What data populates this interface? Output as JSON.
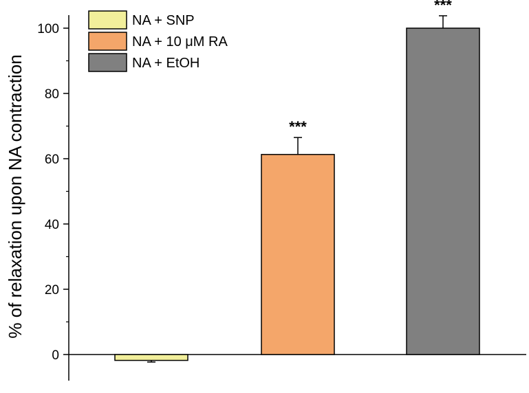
{
  "chart_data": {
    "type": "bar",
    "categories": [
      "NA + SNP",
      "NA + 10 μM RA",
      "NA + EtOH"
    ],
    "values": [
      -1.8,
      61.3,
      100.0
    ],
    "errors": [
      0.5,
      5.2,
      3.8
    ],
    "significance": [
      "",
      "***",
      "***"
    ],
    "colors": [
      "#f2ef9b",
      "#f4a66a",
      "#808080"
    ],
    "title": "",
    "xlabel": "",
    "ylabel": "% of relaxation upon NA contraction",
    "ylim": [
      -8,
      104
    ],
    "yticks": [
      0,
      20,
      40,
      60,
      80,
      100
    ],
    "grid": false,
    "legend": {
      "placement": "top-left",
      "entries": [
        "NA + SNP",
        "NA + 10 μM RA",
        "NA + EtOH"
      ]
    }
  }
}
